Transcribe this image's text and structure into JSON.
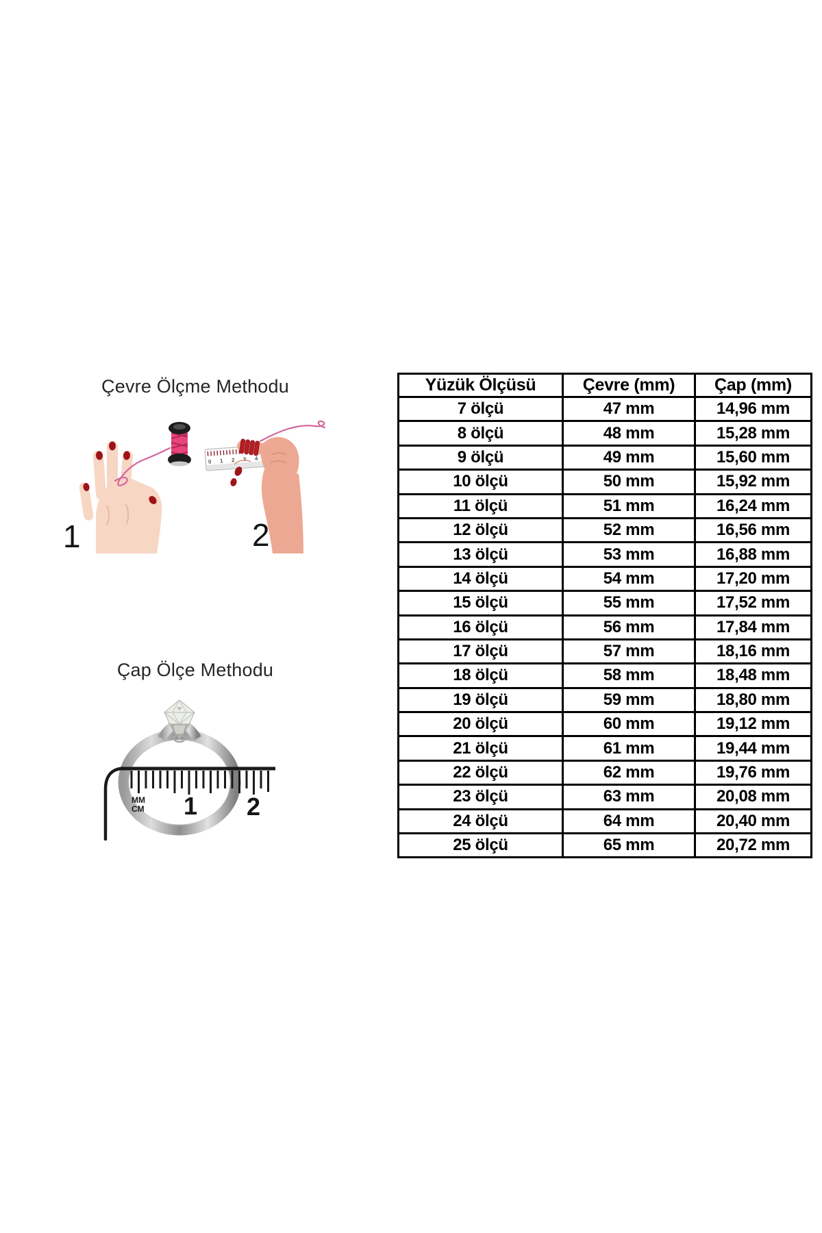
{
  "page": {
    "background": "#ffffff",
    "text_color": "#1a1a1a"
  },
  "illustrations": {
    "circumference": {
      "title": "Çevre Ölçme Methodu",
      "step1_label": "1",
      "step2_label": "2",
      "ruler_numbers": [
        "0",
        "1",
        "2",
        "3",
        "4"
      ],
      "thread_color": "#d4669c",
      "spool_thread_color": "#e8457c",
      "nail_color": "#9e1418",
      "left_hand_skin": "#f7d6c4",
      "right_hand_skin": "#eda893"
    },
    "diameter": {
      "title": "Çap Ölçe Methodu",
      "ruler_unit_top": "MM",
      "ruler_unit_bottom": "CM",
      "ruler_number_1": "1",
      "ruler_number_2": "2",
      "ring_metal_color": "#b9b9b9",
      "ruler_color": "#1a1a1a"
    }
  },
  "table": {
    "headers": [
      "Yüzük Ölçüsü",
      "Çevre (mm)",
      "Çap (mm)"
    ],
    "rows": [
      {
        "size": "7 ölçü",
        "circumference": "47 mm",
        "diameter": "14,96 mm"
      },
      {
        "size": "8 ölçü",
        "circumference": "48 mm",
        "diameter": "15,28 mm"
      },
      {
        "size": "9 ölçü",
        "circumference": "49 mm",
        "diameter": "15,60 mm"
      },
      {
        "size": "10 ölçü",
        "circumference": "50 mm",
        "diameter": "15,92 mm"
      },
      {
        "size": "11 ölçü",
        "circumference": "51 mm",
        "diameter": "16,24 mm"
      },
      {
        "size": "12 ölçü",
        "circumference": "52 mm",
        "diameter": "16,56 mm"
      },
      {
        "size": "13 ölçü",
        "circumference": "53 mm",
        "diameter": "16,88 mm"
      },
      {
        "size": "14 ölçü",
        "circumference": "54 mm",
        "diameter": "17,20 mm"
      },
      {
        "size": "15 ölçü",
        "circumference": "55 mm",
        "diameter": "17,52 mm"
      },
      {
        "size": "16 ölçü",
        "circumference": "56 mm",
        "diameter": "17,84 mm"
      },
      {
        "size": "17 ölçü",
        "circumference": "57 mm",
        "diameter": "18,16 mm"
      },
      {
        "size": "18 ölçü",
        "circumference": "58 mm",
        "diameter": "18,48 mm"
      },
      {
        "size": "19 ölçü",
        "circumference": "59 mm",
        "diameter": "18,80 mm"
      },
      {
        "size": "20 ölçü",
        "circumference": "60 mm",
        "diameter": "19,12 mm"
      },
      {
        "size": "21 ölçü",
        "circumference": "61 mm",
        "diameter": "19,44 mm"
      },
      {
        "size": "22 ölçü",
        "circumference": "62 mm",
        "diameter": "19,76 mm"
      },
      {
        "size": "23 ölçü",
        "circumference": "63 mm",
        "diameter": "20,08 mm"
      },
      {
        "size": "24 ölçü",
        "circumference": "64 mm",
        "diameter": "20,40 mm"
      },
      {
        "size": "25 ölçü",
        "circumference": "65 mm",
        "diameter": "20,72 mm"
      }
    ]
  }
}
